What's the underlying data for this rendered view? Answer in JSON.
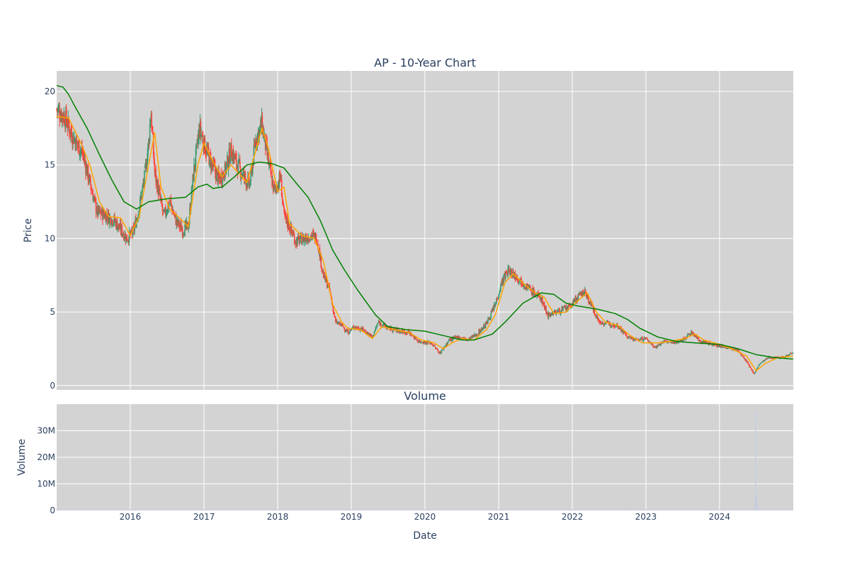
{
  "chart_data": [
    {
      "type": "candlestick",
      "title": "AP - 10-Year Chart",
      "ylabel": "Price",
      "xlim": [
        "2015-01-01",
        "2025-01-01"
      ],
      "ylim": [
        -0.3,
        21.4
      ],
      "yticks": [
        0,
        5,
        10,
        15,
        20
      ],
      "xticks": [
        "2016-01-01",
        "2017-01-01",
        "2018-01-01",
        "2019-01-01",
        "2020-01-01",
        "2021-01-01",
        "2022-01-01",
        "2023-01-01",
        "2024-01-01"
      ],
      "grid": true,
      "legend": "none",
      "colors": {
        "plot_bg": "#d3d3d3",
        "grid": "#ffffff",
        "up": "#3d9970",
        "down": "#ff4136",
        "ma_short": "#ffa500",
        "ma_long": "#008000"
      },
      "price_path": [
        [
          "2015-01-01",
          18.8
        ],
        [
          "2015-02-10",
          18.3
        ],
        [
          "2015-03-20",
          17.0
        ],
        [
          "2015-05-10",
          15.8
        ],
        [
          "2015-06-20",
          13.5
        ],
        [
          "2015-07-20",
          11.8
        ],
        [
          "2015-09-01",
          11.6
        ],
        [
          "2015-10-15",
          11.2
        ],
        [
          "2015-12-15",
          10.0
        ],
        [
          "2016-01-15",
          10.4
        ],
        [
          "2016-02-10",
          11.8
        ],
        [
          "2016-03-10",
          14.0
        ],
        [
          "2016-04-01",
          16.5
        ],
        [
          "2016-04-12",
          18.7
        ],
        [
          "2016-05-01",
          14.5
        ],
        [
          "2016-05-20",
          13.2
        ],
        [
          "2016-06-15",
          11.5
        ],
        [
          "2016-07-15",
          12.5
        ],
        [
          "2016-08-15",
          11.2
        ],
        [
          "2016-09-15",
          10.6
        ],
        [
          "2016-10-15",
          10.8
        ],
        [
          "2016-11-10",
          14.5
        ],
        [
          "2016-12-10",
          17.5
        ],
        [
          "2017-01-10",
          16.0
        ],
        [
          "2017-02-10",
          15.0
        ],
        [
          "2017-03-15",
          14.0
        ],
        [
          "2017-04-15",
          14.6
        ],
        [
          "2017-05-15",
          16.0
        ],
        [
          "2017-06-15",
          15.0
        ],
        [
          "2017-07-15",
          14.3
        ],
        [
          "2017-08-15",
          13.6
        ],
        [
          "2017-09-15",
          16.8
        ],
        [
          "2017-10-15",
          17.8
        ],
        [
          "2017-11-15",
          15.2
        ],
        [
          "2017-12-15",
          13.2
        ],
        [
          "2018-01-15",
          14.2
        ],
        [
          "2018-02-01",
          11.5
        ],
        [
          "2018-03-01",
          10.8
        ],
        [
          "2018-04-01",
          9.8
        ],
        [
          "2018-05-15",
          10.0
        ],
        [
          "2018-06-15",
          10.2
        ],
        [
          "2018-07-15",
          10.0
        ],
        [
          "2018-08-15",
          7.5
        ],
        [
          "2018-09-15",
          6.5
        ],
        [
          "2018-10-15",
          4.3
        ],
        [
          "2018-11-15",
          4.1
        ],
        [
          "2018-12-15",
          3.6
        ],
        [
          "2019-01-15",
          4.0
        ],
        [
          "2019-03-01",
          3.8
        ],
        [
          "2019-04-15",
          3.3
        ],
        [
          "2019-05-15",
          4.3
        ],
        [
          "2019-07-01",
          3.9
        ],
        [
          "2019-09-01",
          3.7
        ],
        [
          "2019-10-15",
          3.6
        ],
        [
          "2019-12-01",
          3.0
        ],
        [
          "2020-02-01",
          2.9
        ],
        [
          "2020-03-15",
          2.2
        ],
        [
          "2020-05-01",
          3.1
        ],
        [
          "2020-06-15",
          3.3
        ],
        [
          "2020-08-01",
          3.1
        ],
        [
          "2020-09-15",
          3.5
        ],
        [
          "2020-11-01",
          4.2
        ],
        [
          "2020-12-15",
          5.5
        ],
        [
          "2021-01-15",
          7.0
        ],
        [
          "2021-02-15",
          7.8
        ],
        [
          "2021-03-15",
          7.6
        ],
        [
          "2021-05-01",
          7.0
        ],
        [
          "2021-06-15",
          6.4
        ],
        [
          "2021-08-01",
          5.9
        ],
        [
          "2021-09-01",
          4.8
        ],
        [
          "2021-11-01",
          5.1
        ],
        [
          "2021-12-15",
          5.3
        ],
        [
          "2022-01-15",
          5.8
        ],
        [
          "2022-03-01",
          6.4
        ],
        [
          "2022-04-01",
          5.6
        ],
        [
          "2022-05-15",
          4.3
        ],
        [
          "2022-07-01",
          4.2
        ],
        [
          "2022-08-15",
          4.1
        ],
        [
          "2022-10-01",
          3.3
        ],
        [
          "2022-11-15",
          3.1
        ],
        [
          "2023-01-01",
          3.2
        ],
        [
          "2023-02-15",
          2.6
        ],
        [
          "2023-04-01",
          3.0
        ],
        [
          "2023-05-15",
          2.9
        ],
        [
          "2023-07-01",
          3.1
        ],
        [
          "2023-08-15",
          3.6
        ],
        [
          "2023-10-01",
          3.0
        ],
        [
          "2023-12-01",
          2.8
        ],
        [
          "2024-02-01",
          2.6
        ],
        [
          "2024-04-01",
          2.4
        ],
        [
          "2024-05-15",
          1.6
        ],
        [
          "2024-06-20",
          0.8
        ],
        [
          "2024-07-20",
          1.5
        ],
        [
          "2024-09-01",
          1.9
        ],
        [
          "2024-10-15",
          1.9
        ],
        [
          "2024-12-01",
          2.0
        ],
        [
          "2024-12-31",
          2.3
        ]
      ],
      "ma_short": [
        [
          "2015-01-01",
          18.3
        ],
        [
          "2015-03-01",
          18.2
        ],
        [
          "2015-05-01",
          16.5
        ],
        [
          "2015-06-15",
          15.0
        ],
        [
          "2015-08-01",
          12.5
        ],
        [
          "2015-09-15",
          11.5
        ],
        [
          "2015-11-15",
          11.4
        ],
        [
          "2016-01-01",
          10.2
        ],
        [
          "2016-02-15",
          11.5
        ],
        [
          "2016-04-01",
          15.0
        ],
        [
          "2016-05-01",
          17.2
        ],
        [
          "2016-06-01",
          13.5
        ],
        [
          "2016-07-15",
          12.0
        ],
        [
          "2016-09-01",
          11.4
        ],
        [
          "2016-10-15",
          10.8
        ],
        [
          "2016-12-01",
          15.0
        ],
        [
          "2017-01-01",
          16.5
        ],
        [
          "2017-02-15",
          15.2
        ],
        [
          "2017-04-01",
          14.2
        ],
        [
          "2017-05-15",
          15.0
        ],
        [
          "2017-07-01",
          14.3
        ],
        [
          "2017-08-01",
          13.8
        ],
        [
          "2017-09-15",
          16.0
        ],
        [
          "2017-10-15",
          17.5
        ],
        [
          "2017-11-15",
          16.2
        ],
        [
          "2018-01-01",
          13.2
        ],
        [
          "2018-02-01",
          13.5
        ],
        [
          "2018-03-01",
          11.0
        ],
        [
          "2018-05-01",
          10.2
        ],
        [
          "2018-07-01",
          10.0
        ],
        [
          "2018-08-15",
          8.5
        ],
        [
          "2018-10-01",
          5.5
        ],
        [
          "2018-11-15",
          4.3
        ],
        [
          "2018-12-15",
          3.9
        ],
        [
          "2019-02-15",
          3.8
        ],
        [
          "2019-04-15",
          3.2
        ],
        [
          "2019-06-01",
          4.0
        ],
        [
          "2019-08-01",
          3.8
        ],
        [
          "2019-10-15",
          3.6
        ],
        [
          "2019-12-15",
          3.1
        ],
        [
          "2020-02-15",
          2.9
        ],
        [
          "2020-04-01",
          2.5
        ],
        [
          "2020-05-15",
          2.9
        ],
        [
          "2020-07-01",
          3.2
        ],
        [
          "2020-09-01",
          3.1
        ],
        [
          "2020-11-01",
          3.8
        ],
        [
          "2020-12-15",
          4.8
        ],
        [
          "2021-02-01",
          7.0
        ],
        [
          "2021-03-15",
          7.6
        ],
        [
          "2021-05-15",
          6.8
        ],
        [
          "2021-07-01",
          6.3
        ],
        [
          "2021-08-15",
          6.0
        ],
        [
          "2021-10-01",
          4.9
        ],
        [
          "2021-12-01",
          5.0
        ],
        [
          "2022-01-15",
          5.6
        ],
        [
          "2022-03-15",
          6.3
        ],
        [
          "2022-05-01",
          5.0
        ],
        [
          "2022-06-15",
          4.3
        ],
        [
          "2022-08-15",
          4.1
        ],
        [
          "2022-10-15",
          3.4
        ],
        [
          "2022-12-15",
          2.9
        ],
        [
          "2023-03-01",
          2.9
        ],
        [
          "2023-05-01",
          3.0
        ],
        [
          "2023-07-15",
          3.2
        ],
        [
          "2023-09-01",
          3.5
        ],
        [
          "2023-10-15",
          3.1
        ],
        [
          "2024-01-01",
          2.8
        ],
        [
          "2024-03-01",
          2.5
        ],
        [
          "2024-05-15",
          2.0
        ],
        [
          "2024-07-01",
          1.0
        ],
        [
          "2024-08-15",
          1.5
        ],
        [
          "2024-10-15",
          1.9
        ],
        [
          "2024-12-31",
          2.0
        ]
      ],
      "ma_long": [
        [
          "2015-01-01",
          20.4
        ],
        [
          "2015-02-01",
          20.3
        ],
        [
          "2015-03-01",
          19.8
        ],
        [
          "2015-04-01",
          19.0
        ],
        [
          "2015-06-01",
          17.5
        ],
        [
          "2015-08-01",
          15.7
        ],
        [
          "2015-10-01",
          14.0
        ],
        [
          "2015-12-01",
          12.5
        ],
        [
          "2016-02-01",
          12.0
        ],
        [
          "2016-04-01",
          12.5
        ],
        [
          "2016-07-01",
          12.7
        ],
        [
          "2016-10-01",
          12.8
        ],
        [
          "2016-12-01",
          13.5
        ],
        [
          "2017-01-15",
          13.7
        ],
        [
          "2017-02-15",
          13.4
        ],
        [
          "2017-04-01",
          13.5
        ],
        [
          "2017-06-01",
          14.2
        ],
        [
          "2017-08-01",
          15.0
        ],
        [
          "2017-10-01",
          15.2
        ],
        [
          "2017-12-01",
          15.1
        ],
        [
          "2018-02-01",
          14.8
        ],
        [
          "2018-04-01",
          13.8
        ],
        [
          "2018-06-01",
          12.8
        ],
        [
          "2018-08-01",
          11.2
        ],
        [
          "2018-10-01",
          9.2
        ],
        [
          "2018-12-01",
          7.8
        ],
        [
          "2019-02-01",
          6.5
        ],
        [
          "2019-05-01",
          4.8
        ],
        [
          "2019-07-01",
          4.0
        ],
        [
          "2019-10-01",
          3.8
        ],
        [
          "2020-01-01",
          3.7
        ],
        [
          "2020-03-01",
          3.5
        ],
        [
          "2020-05-01",
          3.3
        ],
        [
          "2020-07-01",
          3.1
        ],
        [
          "2020-09-01",
          3.1
        ],
        [
          "2020-12-01",
          3.5
        ],
        [
          "2021-02-01",
          4.3
        ],
        [
          "2021-05-01",
          5.6
        ],
        [
          "2021-08-01",
          6.3
        ],
        [
          "2021-10-01",
          6.2
        ],
        [
          "2021-12-01",
          5.6
        ],
        [
          "2022-02-01",
          5.4
        ],
        [
          "2022-05-01",
          5.2
        ],
        [
          "2022-08-01",
          4.9
        ],
        [
          "2022-10-01",
          4.5
        ],
        [
          "2022-12-01",
          3.9
        ],
        [
          "2023-03-01",
          3.3
        ],
        [
          "2023-06-01",
          3.0
        ],
        [
          "2023-09-01",
          2.9
        ],
        [
          "2024-01-01",
          2.8
        ],
        [
          "2024-04-01",
          2.5
        ],
        [
          "2024-07-01",
          2.1
        ],
        [
          "2024-10-01",
          1.9
        ],
        [
          "2024-12-31",
          1.8
        ]
      ]
    },
    {
      "type": "bar",
      "title": "Volume",
      "xlabel": "Date",
      "ylabel": "Volume",
      "ylim": [
        0,
        40000000
      ],
      "yticks": [
        0,
        10000000,
        20000000,
        30000000
      ],
      "ytick_labels": [
        "0",
        "10M",
        "20M",
        "30M"
      ],
      "xticks": [
        "2016-01-01",
        "2017-01-01",
        "2018-01-01",
        "2019-01-01",
        "2020-01-01",
        "2021-01-01",
        "2022-01-01",
        "2023-01-01",
        "2024-01-01"
      ],
      "xtick_labels": [
        "2016",
        "2017",
        "2018",
        "2019",
        "2020",
        "2021",
        "2022",
        "2023",
        "2024"
      ],
      "grid": true,
      "baseline_volume": 300000,
      "spikes": [
        [
          "2022-10-01",
          1500000
        ],
        [
          "2024-06-28",
          37000000
        ],
        [
          "2024-07-03",
          5500000
        ],
        [
          "2024-07-08",
          2000000
        ]
      ]
    }
  ]
}
